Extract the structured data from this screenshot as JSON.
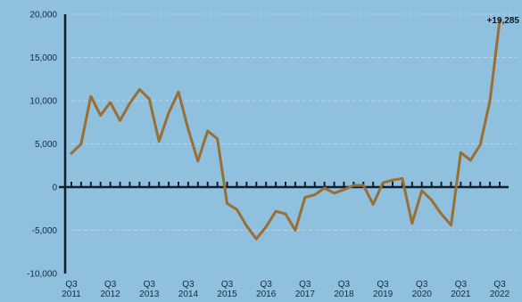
{
  "chart_data": {
    "type": "line",
    "title": "",
    "xlabel": "",
    "ylabel": "",
    "ylim": [
      -10000,
      20000
    ],
    "yticks": [
      20000,
      15000,
      10000,
      5000,
      0,
      -5000,
      -10000
    ],
    "ytick_labels": [
      "20,000",
      "15,000",
      "10,000",
      "5,000",
      "0",
      "-5,000",
      "-10,000"
    ],
    "x": [
      "Q3 2011",
      "Q4 2011",
      "Q1 2012",
      "Q2 2012",
      "Q3 2012",
      "Q4 2012",
      "Q1 2013",
      "Q2 2013",
      "Q3 2013",
      "Q4 2013",
      "Q1 2014",
      "Q2 2014",
      "Q3 2014",
      "Q4 2014",
      "Q1 2015",
      "Q2 2015",
      "Q3 2015",
      "Q4 2015",
      "Q1 2016",
      "Q2 2016",
      "Q3 2016",
      "Q4 2016",
      "Q1 2017",
      "Q2 2017",
      "Q3 2017",
      "Q4 2017",
      "Q1 2018",
      "Q2 2018",
      "Q3 2018",
      "Q4 2018",
      "Q1 2019",
      "Q2 2019",
      "Q3 2019",
      "Q4 2019",
      "Q1 2020",
      "Q2 2020",
      "Q3 2020",
      "Q4 2020",
      "Q1 2021",
      "Q2 2021",
      "Q3 2021",
      "Q4 2021",
      "Q1 2022",
      "Q2 2022",
      "Q3 2022"
    ],
    "xtick_labels": [
      {
        "q": "Q3",
        "year": "2011"
      },
      {
        "q": "Q3",
        "year": "2012"
      },
      {
        "q": "Q3",
        "year": "2013"
      },
      {
        "q": "Q3",
        "year": "2014"
      },
      {
        "q": "Q3",
        "year": "2015"
      },
      {
        "q": "Q3",
        "year": "2016"
      },
      {
        "q": "Q3",
        "year": "2017"
      },
      {
        "q": "Q3",
        "year": "2018"
      },
      {
        "q": "Q3",
        "year": "2019"
      },
      {
        "q": "Q3",
        "year": "2020"
      },
      {
        "q": "Q3",
        "year": "2021"
      },
      {
        "q": "Q3",
        "year": "2022"
      }
    ],
    "series": [
      {
        "values": [
          3900,
          5000,
          10500,
          8300,
          9800,
          7700,
          9700,
          11300,
          10200,
          5300,
          8600,
          11000,
          6700,
          3000,
          6500,
          5600,
          -1900,
          -2600,
          -4500,
          -6000,
          -4600,
          -2800,
          -3100,
          -5000,
          -1200,
          -900,
          -100,
          -700,
          -300,
          200,
          200,
          -2000,
          500,
          800,
          1000,
          -4200,
          -400,
          -1500,
          -3100,
          -4400,
          4000,
          3100,
          4900,
          10000,
          19285
        ]
      }
    ],
    "annotation": {
      "text": "+19,285",
      "index": 44
    },
    "grid": true,
    "colors": {
      "background": "#8fc0dd",
      "line": "#9a6e34",
      "axis": "#0f1f2e",
      "grid": "#b7d6ea"
    }
  }
}
